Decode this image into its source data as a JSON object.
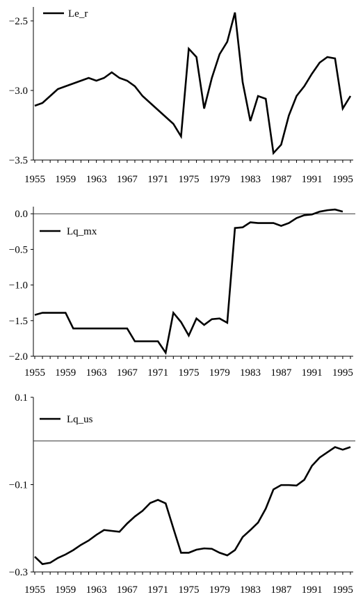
{
  "chart_data": [
    {
      "type": "line",
      "legend_position": "top-left",
      "grid": false,
      "ylim": [
        -3.5,
        -2.4
      ],
      "xlim": [
        1955,
        1996
      ],
      "yticks": [
        -2.5,
        -3.0,
        -3.5
      ],
      "ytick_labels": [
        "−2.5",
        "−3.0",
        "−3.5"
      ],
      "xticks": [
        1955,
        1959,
        1963,
        1967,
        1971,
        1975,
        1979,
        1983,
        1987,
        1991,
        1995
      ],
      "xtick_labels": [
        "1955",
        "1959",
        "1963",
        "1967",
        "1971",
        "1975",
        "1979",
        "1983",
        "1987",
        "1991",
        "1995"
      ],
      "reference_line": null,
      "series": [
        {
          "name": "Le_r",
          "x": [
            1955,
            1956,
            1957,
            1958,
            1959,
            1960,
            1961,
            1962,
            1963,
            1964,
            1965,
            1966,
            1967,
            1968,
            1969,
            1970,
            1971,
            1972,
            1973,
            1974,
            1975,
            1976,
            1977,
            1978,
            1979,
            1980,
            1981,
            1982,
            1983,
            1984,
            1985,
            1986,
            1987,
            1988,
            1989,
            1990,
            1991,
            1992,
            1993,
            1994,
            1995,
            1996
          ],
          "values": [
            -3.11,
            -3.09,
            -3.04,
            -2.99,
            -2.97,
            -2.95,
            -2.93,
            -2.91,
            -2.93,
            -2.91,
            -2.87,
            -2.91,
            -2.93,
            -2.97,
            -3.04,
            -3.09,
            -3.14,
            -3.19,
            -3.24,
            -3.33,
            -2.7,
            -2.76,
            -3.13,
            -2.91,
            -2.74,
            -2.65,
            -2.44,
            -2.94,
            -3.22,
            -3.04,
            -3.06,
            -3.45,
            -3.39,
            -3.18,
            -3.04,
            -2.97,
            -2.88,
            -2.8,
            -2.76,
            -2.77,
            -3.13,
            -3.04
          ]
        }
      ]
    },
    {
      "type": "line",
      "legend_position": "top-left",
      "grid": false,
      "ylim": [
        -2.0,
        0.1
      ],
      "xlim": [
        1955,
        1996
      ],
      "yticks": [
        0.0,
        -0.5,
        -1.0,
        -1.5,
        -2.0
      ],
      "ytick_labels": [
        "0.0",
        "−0.5",
        "−1.0",
        "−1.5",
        "−2.0"
      ],
      "xticks": [
        1955,
        1959,
        1963,
        1967,
        1971,
        1975,
        1979,
        1983,
        1987,
        1991,
        1995
      ],
      "xtick_labels": [
        "1955",
        "1959",
        "1963",
        "1967",
        "1971",
        "1975",
        "1979",
        "1983",
        "1987",
        "1991",
        "1995"
      ],
      "reference_line": 0.0,
      "series": [
        {
          "name": "Lq_mx",
          "x": [
            1955,
            1956,
            1957,
            1958,
            1959,
            1960,
            1961,
            1962,
            1963,
            1964,
            1965,
            1966,
            1967,
            1968,
            1969,
            1970,
            1971,
            1972,
            1973,
            1974,
            1975,
            1976,
            1977,
            1978,
            1979,
            1980,
            1981,
            1982,
            1983,
            1984,
            1985,
            1986,
            1987,
            1988,
            1989,
            1990,
            1991,
            1992,
            1993,
            1994,
            1995
          ],
          "values": [
            -1.42,
            -1.39,
            -1.39,
            -1.39,
            -1.39,
            -1.61,
            -1.61,
            -1.61,
            -1.61,
            -1.61,
            -1.61,
            -1.61,
            -1.61,
            -1.79,
            -1.79,
            -1.79,
            -1.79,
            -1.95,
            -1.39,
            -1.52,
            -1.71,
            -1.47,
            -1.56,
            -1.48,
            -1.47,
            -1.53,
            -0.2,
            -0.19,
            -0.12,
            -0.13,
            -0.13,
            -0.13,
            -0.17,
            -0.13,
            -0.06,
            -0.02,
            -0.01,
            0.03,
            0.05,
            0.06,
            0.03
          ]
        }
      ]
    },
    {
      "type": "line",
      "legend_position": "top-left",
      "grid": false,
      "ylim": [
        -0.3,
        0.1
      ],
      "xlim": [
        1955,
        1996
      ],
      "yticks": [
        0.1,
        -0.1,
        -0.3
      ],
      "ytick_labels": [
        "0.1",
        "−0.1",
        "−0.3"
      ],
      "xticks": [
        1955,
        1959,
        1963,
        1967,
        1971,
        1975,
        1979,
        1983,
        1987,
        1991,
        1995
      ],
      "xtick_labels": [
        "1955",
        "1959",
        "1963",
        "1967",
        "1971",
        "1975",
        "1979",
        "1983",
        "1987",
        "1991",
        "1995"
      ],
      "reference_line": 0.0,
      "series": [
        {
          "name": "Lq_us",
          "x": [
            1955,
            1956,
            1957,
            1958,
            1959,
            1960,
            1961,
            1962,
            1963,
            1964,
            1965,
            1966,
            1967,
            1968,
            1969,
            1970,
            1971,
            1972,
            1973,
            1974,
            1975,
            1976,
            1977,
            1978,
            1979,
            1980,
            1981,
            1982,
            1983,
            1984,
            1985,
            1986,
            1987,
            1988,
            1989,
            1990,
            1991,
            1992,
            1993,
            1994,
            1995,
            1996
          ],
          "values": [
            -0.265,
            -0.282,
            -0.279,
            -0.268,
            -0.26,
            -0.25,
            -0.238,
            -0.228,
            -0.215,
            -0.204,
            -0.206,
            -0.208,
            -0.189,
            -0.173,
            -0.16,
            -0.142,
            -0.135,
            -0.143,
            -0.2,
            -0.256,
            -0.256,
            -0.249,
            -0.246,
            -0.247,
            -0.256,
            -0.262,
            -0.25,
            -0.22,
            -0.204,
            -0.187,
            -0.155,
            -0.111,
            -0.101,
            -0.101,
            -0.102,
            -0.089,
            -0.057,
            -0.038,
            -0.026,
            -0.014,
            -0.02,
            -0.014
          ]
        }
      ]
    }
  ]
}
